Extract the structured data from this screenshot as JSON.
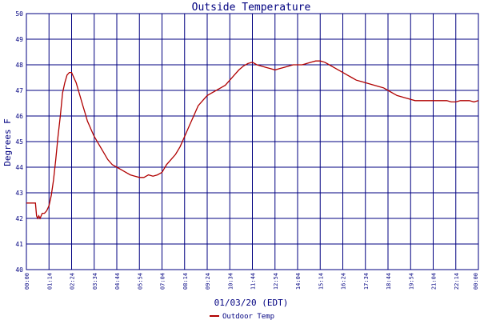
{
  "chart_data": {
    "type": "line",
    "title": "Outside Temperature",
    "xlabel": "01/03/20 (EDT)",
    "ylabel": "Degrees F",
    "ylim": [
      40,
      50
    ],
    "grid": true,
    "legend": "bottom-left",
    "x_tick_labels": [
      "00:00",
      "01:14",
      "02:24",
      "03:34",
      "04:44",
      "05:54",
      "07:04",
      "08:14",
      "09:24",
      "10:34",
      "11:44",
      "12:54",
      "14:04",
      "15:14",
      "16:24",
      "17:34",
      "18:44",
      "19:54",
      "21:04",
      "22:14",
      "00:00"
    ],
    "y_tick_labels": [
      "40",
      "41",
      "42",
      "43",
      "44",
      "45",
      "46",
      "47",
      "48",
      "49",
      "50"
    ],
    "colors": {
      "plot_bg": "#ffffff",
      "grid": "#000080",
      "text": "#000080",
      "series": "#b00000"
    },
    "series": [
      {
        "name": "Outdoor Temp",
        "x_tick_index": [
          0,
          0.4,
          0.45,
          0.5,
          0.55,
          0.6,
          0.7,
          0.8,
          0.9,
          1.0,
          1.1,
          1.2,
          1.3,
          1.4,
          1.5,
          1.6,
          1.7,
          1.8,
          1.9,
          2.0,
          2.1,
          2.2,
          2.3,
          2.4,
          2.5,
          2.6,
          2.7,
          2.8,
          2.9,
          3.0,
          3.2,
          3.4,
          3.6,
          3.8,
          4.0,
          4.2,
          4.4,
          4.6,
          4.8,
          5.0,
          5.2,
          5.4,
          5.6,
          5.8,
          6.0,
          6.2,
          6.4,
          6.6,
          6.8,
          7.0,
          7.2,
          7.4,
          7.6,
          7.8,
          8.0,
          8.2,
          8.4,
          8.6,
          8.8,
          9.0,
          9.2,
          9.4,
          9.6,
          9.8,
          10.0,
          10.2,
          10.4,
          10.6,
          10.8,
          11.0,
          11.2,
          11.4,
          11.6,
          11.8,
          12.0,
          12.2,
          12.4,
          12.6,
          12.8,
          13.0,
          13.2,
          13.4,
          13.6,
          13.8,
          14.0,
          14.2,
          14.4,
          14.6,
          14.8,
          15.0,
          15.2,
          15.4,
          15.6,
          15.8,
          16.0,
          16.2,
          16.4,
          16.6,
          16.8,
          17.0,
          17.2,
          17.4,
          17.6,
          17.8,
          18.0,
          18.2,
          18.4,
          18.6,
          18.8,
          19.0,
          19.2,
          19.4,
          19.6,
          19.8,
          20.0
        ],
        "values": [
          42.6,
          42.6,
          42.1,
          42.0,
          42.1,
          42.0,
          42.2,
          42.2,
          42.3,
          42.5,
          42.9,
          43.5,
          44.3,
          45.2,
          46.0,
          46.9,
          47.3,
          47.6,
          47.7,
          47.7,
          47.5,
          47.3,
          47.0,
          46.7,
          46.4,
          46.1,
          45.8,
          45.6,
          45.4,
          45.2,
          44.9,
          44.6,
          44.3,
          44.1,
          44.0,
          43.9,
          43.8,
          43.7,
          43.65,
          43.6,
          43.6,
          43.7,
          43.65,
          43.7,
          43.8,
          44.1,
          44.3,
          44.5,
          44.8,
          45.2,
          45.6,
          46.0,
          46.4,
          46.6,
          46.8,
          46.9,
          47.0,
          47.1,
          47.2,
          47.4,
          47.6,
          47.8,
          47.95,
          48.05,
          48.1,
          48.0,
          47.95,
          47.9,
          47.85,
          47.8,
          47.85,
          47.9,
          47.95,
          48.0,
          48.0,
          48.0,
          48.05,
          48.1,
          48.15,
          48.15,
          48.1,
          48.0,
          47.9,
          47.8,
          47.7,
          47.6,
          47.5,
          47.4,
          47.35,
          47.3,
          47.25,
          47.2,
          47.15,
          47.1,
          47.0,
          46.9,
          46.8,
          46.75,
          46.7,
          46.65,
          46.6,
          46.6,
          46.6,
          46.6,
          46.6,
          46.6,
          46.6,
          46.6,
          46.55,
          46.55,
          46.6,
          46.6,
          46.6,
          46.55,
          46.6,
          46.6,
          46.6
        ]
      }
    ]
  }
}
